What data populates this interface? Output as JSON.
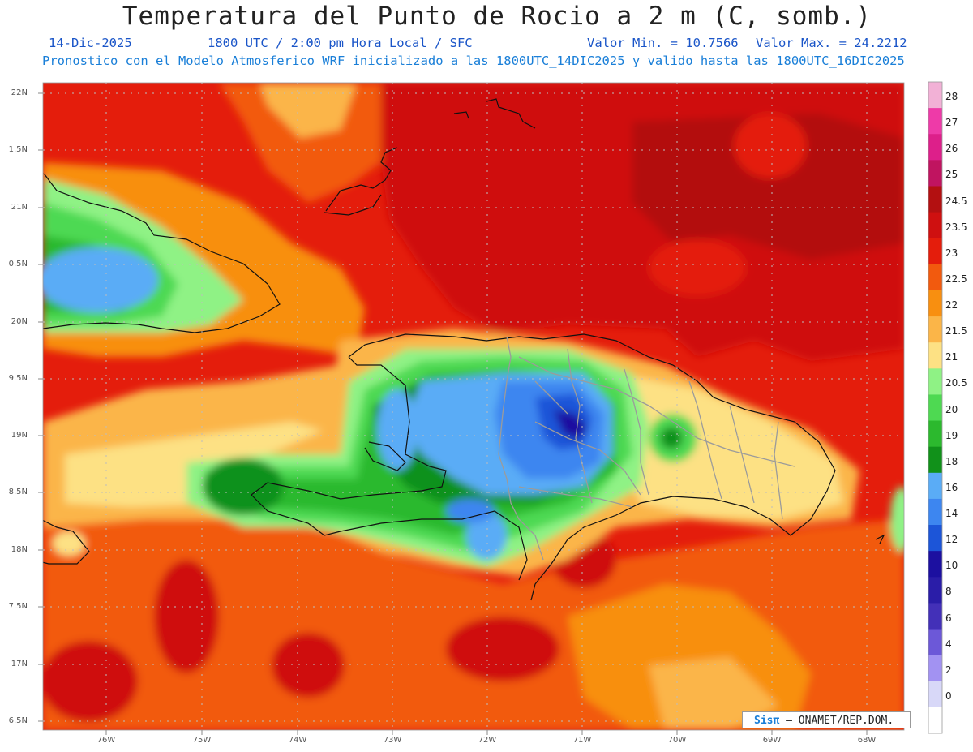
{
  "title": "Temperatura del Punto de Rocio a 2 m (C, somb.)",
  "date": "14-Dic-2025",
  "time_info": "1800 UTC / 2:00 pm Hora Local / SFC",
  "val_min": "Valor Min. = 10.7566",
  "val_max": "Valor Max. = 24.2212",
  "forecast": "Pronostico con el Modelo Atmosferico WRF inicializado a las 1800UTC_14DIC2025 y valido hasta las  1800UTC_16DIC2025",
  "map": {
    "lat_labels": [
      "22N",
      "1.5N",
      "21N",
      "0.5N",
      "20N",
      "9.5N",
      "19N",
      "8.5N",
      "18N",
      "7.5N",
      "17N",
      "6.5N"
    ],
    "lon_labels": [
      "76W",
      "75W",
      "74W",
      "73W",
      "72W",
      "71W",
      "70W",
      "69W",
      "68W"
    ]
  },
  "colorbar": {
    "labels": [
      "28",
      "27",
      "26",
      "25",
      "24.5",
      "23.5",
      "23",
      "22.5",
      "22",
      "21.5",
      "21",
      "20.5",
      "20",
      "19",
      "18",
      "16",
      "14",
      "12",
      "10",
      "8",
      "6",
      "4",
      "2",
      "0"
    ],
    "colors": [
      "#f2b1d6",
      "#ee3aa8",
      "#dd1f8a",
      "#c01460",
      "#b31011",
      "#cf1010",
      "#e41d0c",
      "#f25a0e",
      "#f88f10",
      "#fbb548",
      "#fde184",
      "#8ff285",
      "#4ed952",
      "#2cb92e",
      "#11911a",
      "#5aacf6",
      "#3d86f0",
      "#1c55d8",
      "#1c10a0",
      "#2a1da8",
      "#4330b8",
      "#6c58d8",
      "#a292f2",
      "#d8d8f8",
      "#ffffff"
    ]
  },
  "credit": {
    "logo": "Sisπ",
    "text": " – ONAMET/REP.DOM."
  }
}
